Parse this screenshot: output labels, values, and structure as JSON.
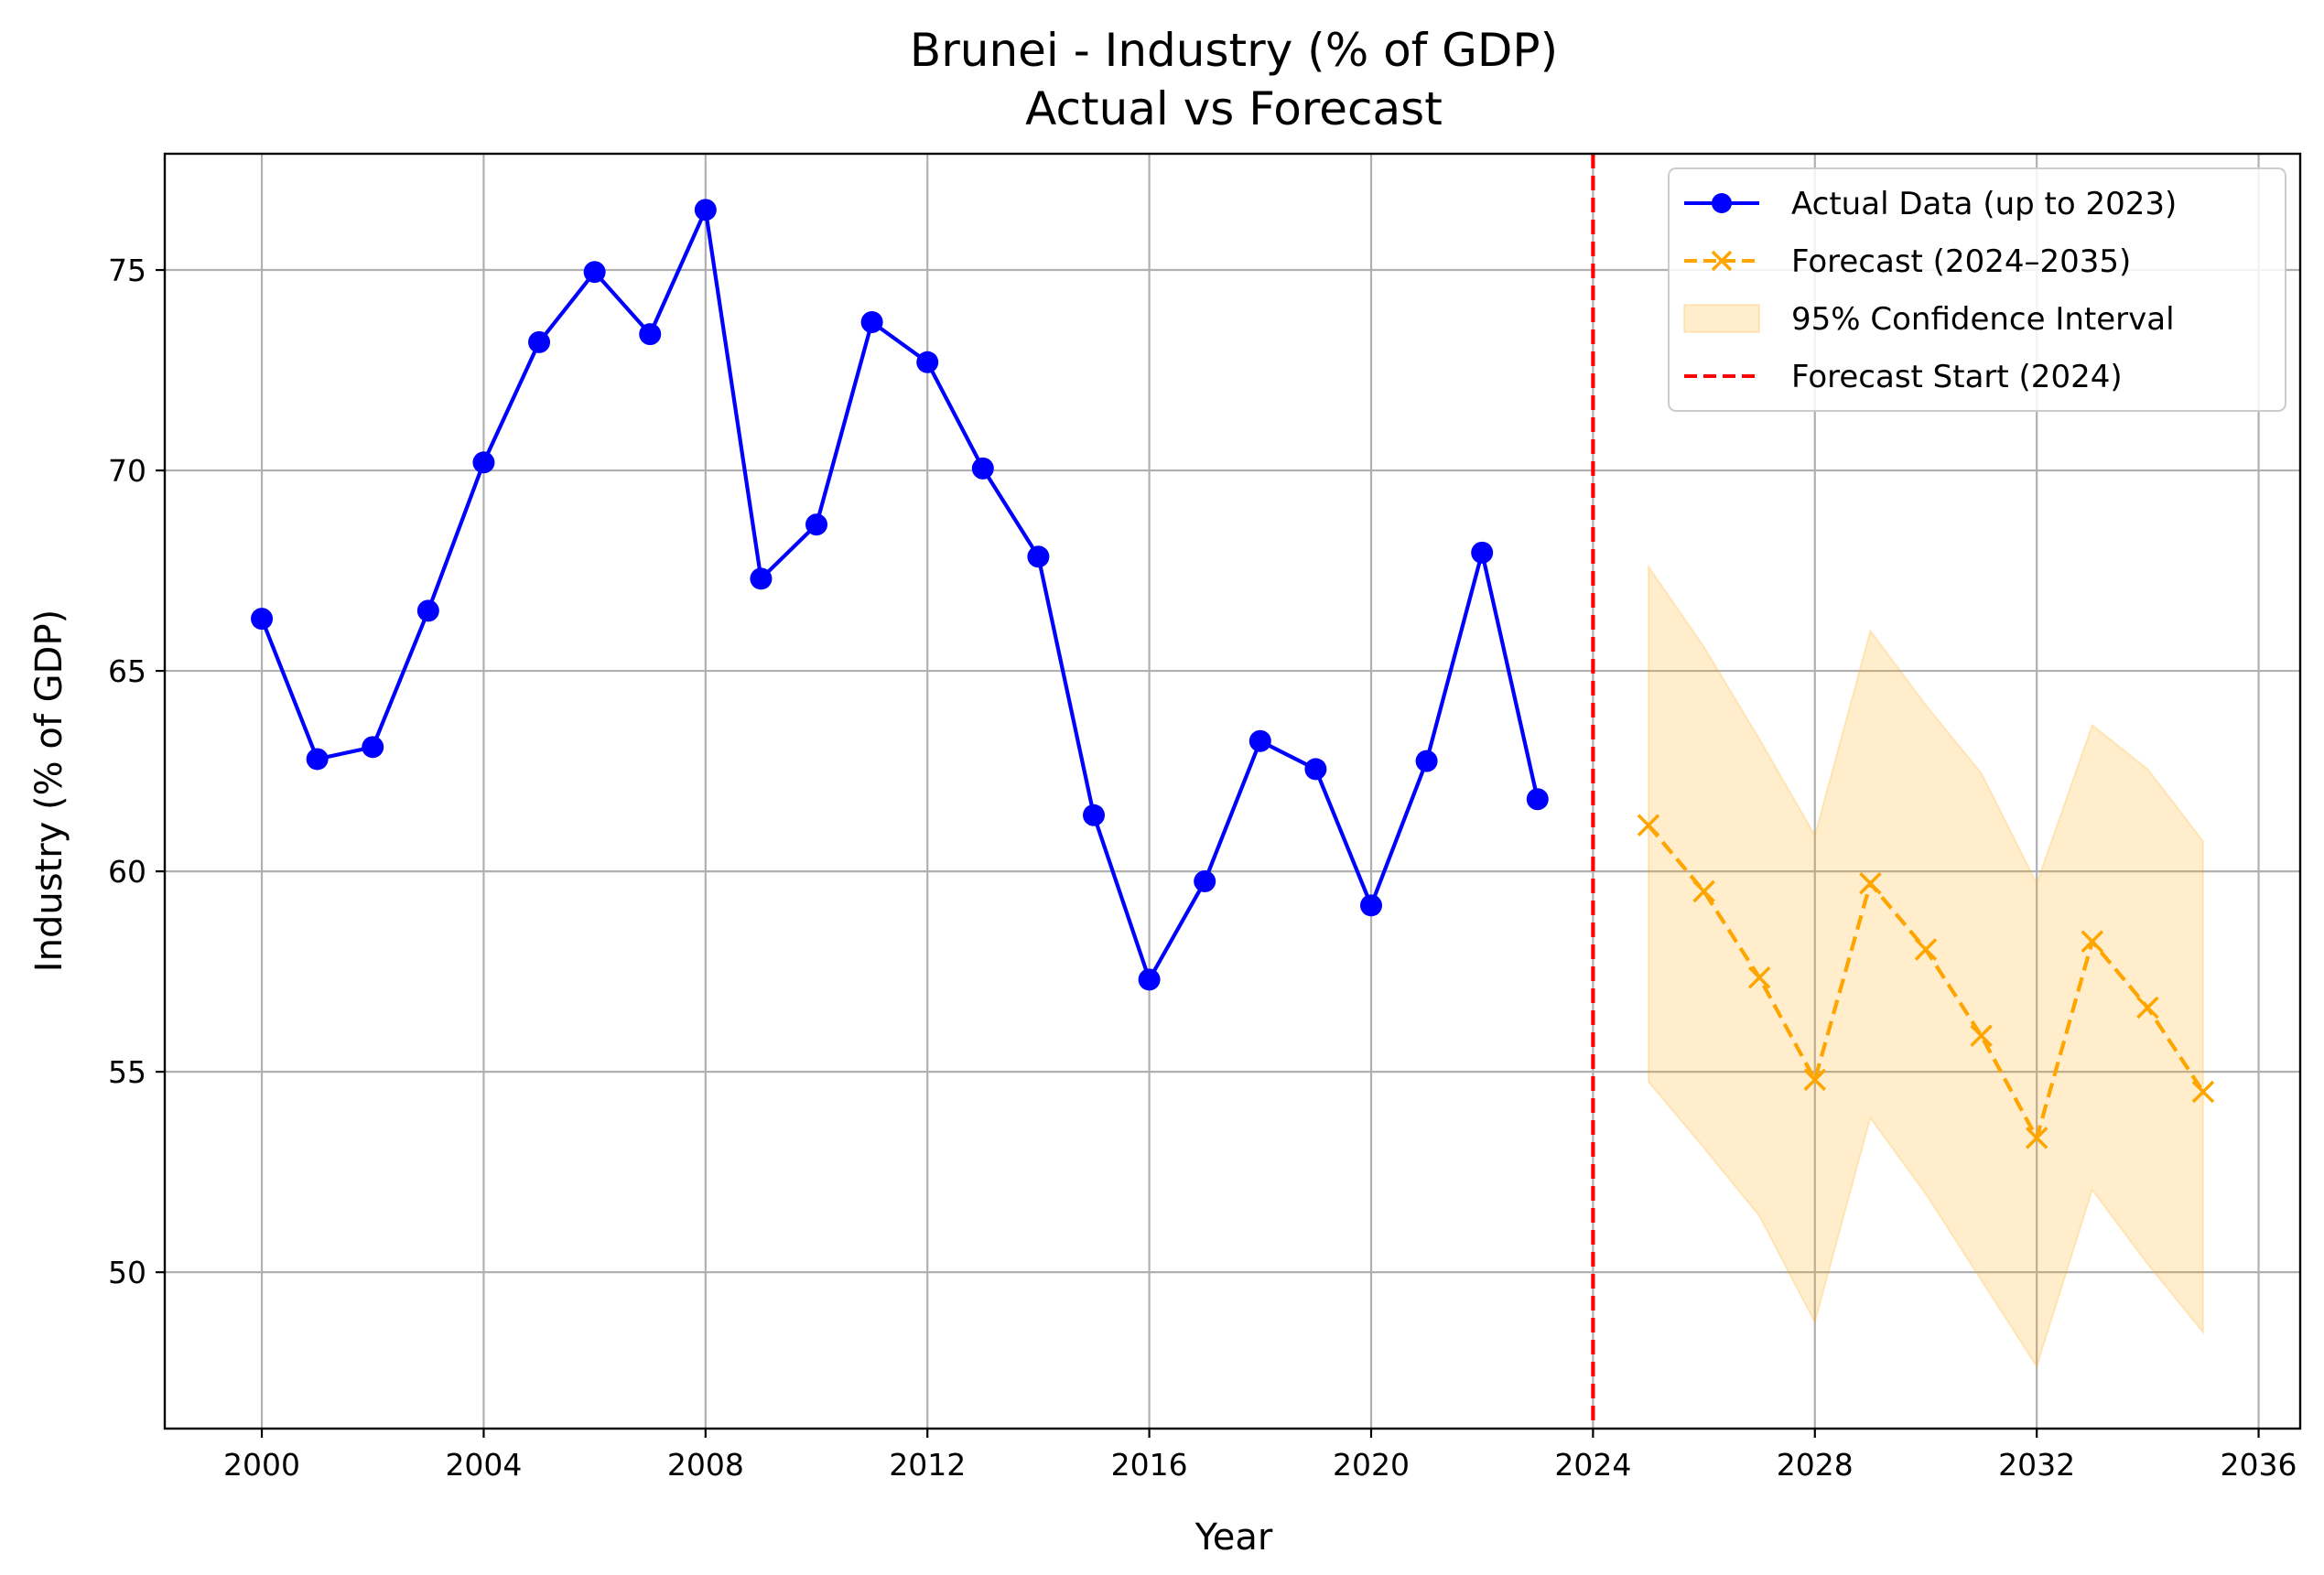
{
  "chart_data": {
    "type": "line",
    "title": "Brunei - Industry (% of GDP)",
    "subtitle": "Actual vs Forecast",
    "xlabel": "Year",
    "ylabel": "Industry (% of GDP)",
    "xlim": [
      1998.25,
      2036.75
    ],
    "ylim": [
      46.1,
      77.9
    ],
    "xticks": [
      2000,
      2004,
      2008,
      2012,
      2016,
      2020,
      2024,
      2028,
      2032,
      2036
    ],
    "yticks": [
      50,
      55,
      60,
      65,
      70,
      75
    ],
    "grid": true,
    "legend_position": "top-right",
    "series": [
      {
        "name": "Actual Data (up to 2023)",
        "style": "solid-line-circle-markers",
        "color": "#0000ff",
        "x": [
          2000,
          2001,
          2002,
          2003,
          2004,
          2005,
          2006,
          2007,
          2008,
          2009,
          2010,
          2011,
          2012,
          2013,
          2014,
          2015,
          2016,
          2017,
          2018,
          2019,
          2020,
          2021,
          2022,
          2023
        ],
        "y": [
          66.3,
          62.8,
          63.1,
          66.5,
          70.2,
          73.2,
          74.95,
          73.4,
          76.5,
          67.3,
          68.65,
          73.7,
          72.7,
          70.05,
          67.85,
          61.4,
          57.3,
          59.75,
          63.25,
          62.55,
          59.15,
          62.75,
          67.95,
          61.8
        ]
      },
      {
        "name": "Forecast (2024–2035)",
        "style": "dashed-line-x-markers",
        "color": "#ffa500",
        "x": [
          2025,
          2026,
          2027,
          2028,
          2029,
          2030,
          2031,
          2032,
          2033,
          2034,
          2035
        ],
        "y": [
          61.15,
          59.5,
          57.35,
          54.8,
          59.7,
          58.05,
          55.9,
          53.35,
          58.25,
          56.6,
          54.5
        ]
      },
      {
        "name": "95% Confidence Interval",
        "style": "filled-band",
        "color": "#ffa500",
        "x": [
          2025,
          2026,
          2027,
          2028,
          2029,
          2030,
          2031,
          2032,
          2033,
          2034,
          2035
        ],
        "lower": [
          54.75,
          53.1,
          51.4,
          48.75,
          53.85,
          51.95,
          49.8,
          47.65,
          52.05,
          50.2,
          48.5
        ],
        "upper": [
          67.6,
          65.6,
          63.3,
          60.9,
          66.0,
          64.15,
          62.45,
          59.7,
          63.65,
          62.55,
          60.75
        ]
      },
      {
        "name": "Forecast Start (2024)",
        "style": "dashed-vertical-line",
        "color": "#ff0000",
        "x": 2024
      }
    ]
  }
}
